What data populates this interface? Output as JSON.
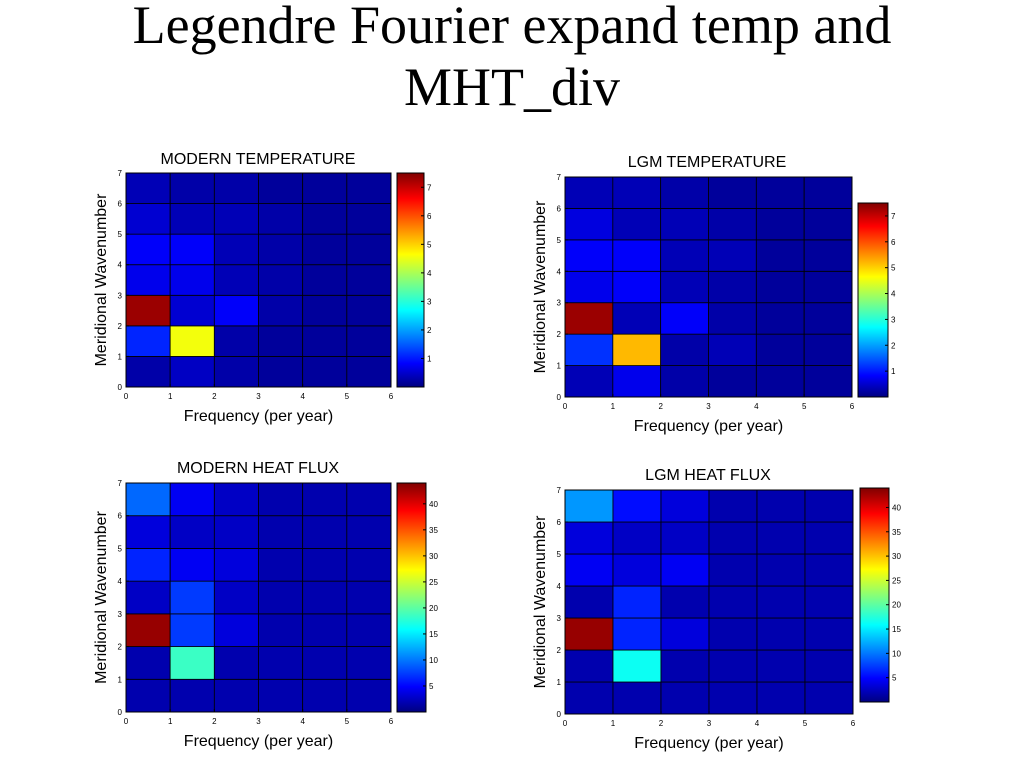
{
  "title": "Legendre Fourier expand temp and MHT_div",
  "chart_data": [
    {
      "type": "heatmap",
      "title": "MODERN TEMPERATURE",
      "xlabel": "Frequency (per year)",
      "ylabel": "Meridional Wavenumber",
      "xlim": [
        0,
        6
      ],
      "ylim": [
        0,
        7
      ],
      "xticks": [
        0,
        1,
        2,
        3,
        4,
        5,
        6
      ],
      "yticks": [
        0,
        1,
        2,
        3,
        4,
        5,
        6,
        7
      ],
      "values": [
        [
          0.3,
          0.5,
          0.3,
          0.2,
          0.2,
          0.2
        ],
        [
          1.2,
          4.6,
          0.3,
          0.2,
          0.2,
          0.2
        ],
        [
          7.3,
          0.6,
          0.9,
          0.3,
          0.2,
          0.2
        ],
        [
          0.8,
          0.8,
          0.4,
          0.3,
          0.2,
          0.2
        ],
        [
          0.9,
          0.9,
          0.4,
          0.3,
          0.2,
          0.2
        ],
        [
          0.6,
          0.4,
          0.4,
          0.3,
          0.2,
          0.2
        ],
        [
          0.4,
          0.3,
          0.3,
          0.2,
          0.2,
          0.2
        ]
      ],
      "colormap": "jet",
      "clim": [
        0,
        7.5
      ],
      "cticks": [
        1,
        2,
        3,
        4,
        5,
        6,
        7
      ]
    },
    {
      "type": "heatmap",
      "title": "LGM TEMPERATURE",
      "xlabel": "Frequency (per year)",
      "ylabel": "Meridional Wavenumber",
      "xlim": [
        0,
        6
      ],
      "ylim": [
        0,
        7
      ],
      "xticks": [
        0,
        1,
        2,
        3,
        4,
        5,
        6
      ],
      "yticks": [
        0,
        1,
        2,
        3,
        4,
        5,
        6,
        7
      ],
      "values": [
        [
          0.4,
          0.8,
          0.3,
          0.2,
          0.2,
          0.2
        ],
        [
          1.3,
          5.2,
          0.3,
          0.4,
          0.2,
          0.2
        ],
        [
          7.3,
          0.4,
          0.9,
          0.3,
          0.2,
          0.2
        ],
        [
          0.8,
          0.9,
          0.4,
          0.3,
          0.2,
          0.2
        ],
        [
          0.9,
          0.9,
          0.4,
          0.4,
          0.2,
          0.2
        ],
        [
          0.7,
          0.4,
          0.4,
          0.3,
          0.2,
          0.2
        ],
        [
          0.4,
          0.4,
          0.3,
          0.2,
          0.2,
          0.2
        ]
      ],
      "colormap": "jet",
      "clim": [
        0,
        7.5
      ],
      "cticks": [
        1,
        2,
        3,
        4,
        5,
        6,
        7
      ]
    },
    {
      "type": "heatmap",
      "title": "MODERN HEAT FLUX",
      "xlabel": "Frequency (per year)",
      "ylabel": "Meridional Wavenumber",
      "xlim": [
        0,
        6
      ],
      "ylim": [
        0,
        7
      ],
      "xticks": [
        0,
        1,
        2,
        3,
        4,
        5,
        6
      ],
      "yticks": [
        0,
        1,
        2,
        3,
        4,
        5,
        6,
        7
      ],
      "values": [
        [
          2,
          2,
          2,
          2,
          2,
          2
        ],
        [
          2,
          19,
          2,
          2,
          2,
          2
        ],
        [
          43,
          8,
          4,
          2,
          2,
          2
        ],
        [
          3,
          8,
          3,
          2,
          2,
          2
        ],
        [
          7,
          5,
          4,
          2,
          2,
          2
        ],
        [
          4,
          3,
          3,
          2,
          2,
          2
        ],
        [
          10,
          5,
          3,
          2,
          2,
          2
        ]
      ],
      "colormap": "jet",
      "clim": [
        0,
        44
      ],
      "cticks": [
        5,
        10,
        15,
        20,
        25,
        30,
        35,
        40
      ]
    },
    {
      "type": "heatmap",
      "title": "LGM HEAT FLUX",
      "xlabel": "Frequency (per year)",
      "ylabel": "Meridional Wavenumber",
      "xlim": [
        0,
        6
      ],
      "ylim": [
        0,
        7
      ],
      "xticks": [
        0,
        1,
        2,
        3,
        4,
        5,
        6
      ],
      "yticks": [
        0,
        1,
        2,
        3,
        4,
        5,
        6,
        7
      ],
      "values": [
        [
          2,
          2,
          2,
          2,
          2,
          2
        ],
        [
          2,
          17,
          2,
          2,
          2,
          2
        ],
        [
          43,
          7,
          4,
          2,
          2,
          2
        ],
        [
          2,
          7,
          2,
          2,
          2,
          2
        ],
        [
          5,
          4,
          5,
          2,
          2,
          2
        ],
        [
          4,
          3,
          3,
          2,
          2,
          2
        ],
        [
          12,
          6,
          4,
          2,
          2,
          2
        ]
      ],
      "colormap": "jet",
      "clim": [
        0,
        44
      ],
      "cticks": [
        5,
        10,
        15,
        20,
        25,
        30,
        35,
        40
      ]
    }
  ]
}
